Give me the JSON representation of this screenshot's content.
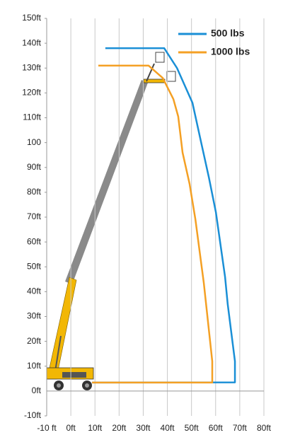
{
  "chart_data": {
    "type": "line",
    "xlim": [
      -10,
      80
    ],
    "ylim": [
      -10,
      150
    ],
    "xticks": [
      {
        "value": -10,
        "label": "-10 ft"
      },
      {
        "value": 0,
        "label": "0ft"
      },
      {
        "value": 10,
        "label": "10ft"
      },
      {
        "value": 20,
        "label": "20ft"
      },
      {
        "value": 30,
        "label": "30ft"
      },
      {
        "value": 40,
        "label": "40ft"
      },
      {
        "value": 50,
        "label": "50ft"
      },
      {
        "value": 60,
        "label": "60ft"
      },
      {
        "value": 70,
        "label": "70ft"
      },
      {
        "value": 80,
        "label": "80ft"
      }
    ],
    "yticks": [
      {
        "value": -10,
        "label": "-10ft"
      },
      {
        "value": 0,
        "label": "0ft"
      },
      {
        "value": 10,
        "label": "10ft"
      },
      {
        "value": 20,
        "label": "20ft"
      },
      {
        "value": 30,
        "label": "30ft"
      },
      {
        "value": 40,
        "label": "40ft"
      },
      {
        "value": 50,
        "label": "50ft"
      },
      {
        "value": 60,
        "label": "60ft"
      },
      {
        "value": 70,
        "label": "70ft"
      },
      {
        "value": 80,
        "label": "80ft"
      },
      {
        "value": 90,
        "label": "90ft"
      },
      100,
      {
        "value": 110,
        "label": "110ft"
      },
      {
        "value": 120,
        "label": "120ft"
      },
      {
        "value": 130,
        "label": "130ft"
      },
      {
        "value": 140,
        "label": "140ft"
      },
      {
        "value": 150,
        "label": "150ft"
      }
    ],
    "grid": true,
    "legend": "top-right",
    "series": [
      {
        "name": "500 lbs",
        "color": "#1a8fd6",
        "x": [
          14.3,
          38.7,
          44,
          50.4,
          53.9,
          57.2,
          60.1,
          63.9,
          65,
          68,
          68,
          8.8
        ],
        "y": [
          138,
          138,
          130,
          116,
          100.5,
          86,
          72,
          46,
          35,
          12,
          3.5,
          3.4
        ]
      },
      {
        "name": "1000 lbs",
        "color": "#f4a024",
        "x": [
          11.4,
          32.2,
          38.1,
          42.5,
          44.5,
          46.3,
          49.2,
          51.6,
          55.1,
          58.6,
          58.6,
          8.8
        ],
        "y": [
          131,
          131,
          126,
          117.5,
          110.5,
          96,
          83.4,
          69.2,
          43.5,
          12,
          3.4,
          3.4
        ]
      }
    ]
  }
}
